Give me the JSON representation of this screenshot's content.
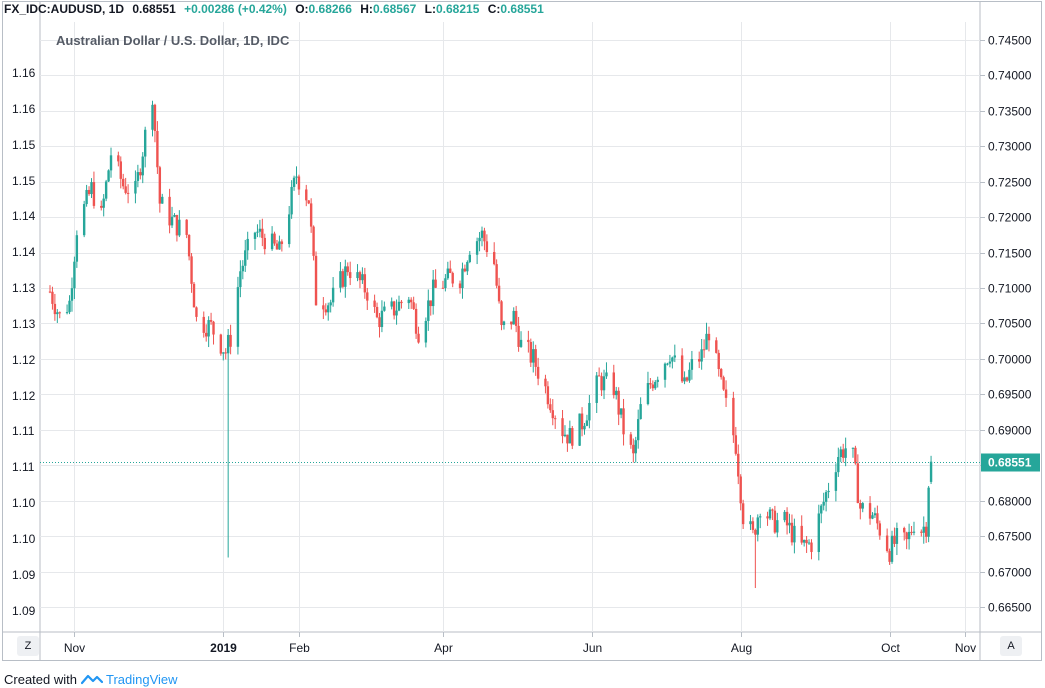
{
  "header": {
    "symbol": "FX_IDC:AUDUSD, 1D",
    "last": "0.68551",
    "change": "+0.00286 (+0.42%)",
    "o_label": "O:",
    "o": "0.68266",
    "h_label": "H:",
    "h": "0.68567",
    "l_label": "L:",
    "l": "0.68215",
    "c_label": "C:",
    "c": "0.68551"
  },
  "footer": {
    "created_with": "Created with",
    "brand": "TradingView"
  },
  "buttons": {
    "left": "Z",
    "right": "A"
  },
  "chart_data": {
    "type": "candlestick",
    "title": "Australian Dollar / U.S. Dollar, 1D, IDC",
    "colors": {
      "up": "#26a69a",
      "down": "#ef5350",
      "last_price": "#26a69a",
      "grid": "#e6e8eb"
    },
    "right_axis": {
      "ylim": [
        0.6615,
        0.7475
      ],
      "ticks": [
        "0.66500",
        "0.67000",
        "0.67500",
        "0.68000",
        "0.68500",
        "0.69000",
        "0.69500",
        "0.70000",
        "0.70500",
        "0.71000",
        "0.71500",
        "0.72000",
        "0.72500",
        "0.73000",
        "0.73500",
        "0.74000",
        "0.74500"
      ],
      "last_price_label": "0.68551",
      "last_price": 0.68551
    },
    "left_axis": {
      "ticks": [
        "1.09",
        "1.09",
        "1.10",
        "1.10",
        "1.11",
        "1.11",
        "1.12",
        "1.12",
        "1.13",
        "1.13",
        "1.14",
        "1.14",
        "1.15",
        "1.15",
        "1.16",
        "1.16"
      ]
    },
    "x_axis": {
      "ticks": [
        {
          "label": "Nov",
          "bold": false,
          "date": "2018-11-01"
        },
        {
          "label": "2019",
          "bold": true,
          "date": "2019-01-01"
        },
        {
          "label": "Feb",
          "bold": false,
          "date": "2019-02-01"
        },
        {
          "label": "Apr",
          "bold": false,
          "date": "2019-04-01"
        },
        {
          "label": "Jun",
          "bold": false,
          "date": "2019-06-01"
        },
        {
          "label": "Aug",
          "bold": false,
          "date": "2019-08-01"
        },
        {
          "label": "Oct",
          "bold": false,
          "date": "2019-10-01"
        },
        {
          "label": "Nov",
          "bold": false,
          "date": "2019-11-01"
        }
      ]
    },
    "grid": true,
    "path": [
      [
        "2018-10-22",
        0.7095
      ],
      [
        "2018-10-26",
        0.706
      ],
      [
        "2018-10-30",
        0.708
      ],
      [
        "2018-11-02",
        0.7185
      ],
      [
        "2018-11-08",
        0.724
      ],
      [
        "2018-11-12",
        0.72
      ],
      [
        "2018-11-16",
        0.729
      ],
      [
        "2018-11-21",
        0.7245
      ],
      [
        "2018-11-26",
        0.7235
      ],
      [
        "2018-12-03",
        0.7375
      ],
      [
        "2018-12-06",
        0.722
      ],
      [
        "2018-12-11",
        0.7195
      ],
      [
        "2018-12-17",
        0.7175
      ],
      [
        "2018-12-21",
        0.7055
      ],
      [
        "2018-12-27",
        0.7045
      ],
      [
        "2019-01-02",
        0.701
      ],
      [
        "2019-01-04",
        0.703
      ],
      [
        "2019-01-08",
        0.7125
      ],
      [
        "2019-01-14",
        0.718
      ],
      [
        "2019-01-18",
        0.717
      ],
      [
        "2019-01-24",
        0.715
      ],
      [
        "2019-01-31",
        0.726
      ],
      [
        "2019-02-05",
        0.7225
      ],
      [
        "2019-02-08",
        0.7085
      ],
      [
        "2019-02-14",
        0.708
      ],
      [
        "2019-02-21",
        0.713
      ],
      [
        "2019-03-01",
        0.7095
      ],
      [
        "2019-03-05",
        0.7055
      ],
      [
        "2019-03-12",
        0.707
      ],
      [
        "2019-03-18",
        0.709
      ],
      [
        "2019-03-22",
        0.704
      ],
      [
        "2019-03-28",
        0.7095
      ],
      [
        "2019-04-04",
        0.7115
      ],
      [
        "2019-04-08",
        0.7115
      ],
      [
        "2019-04-12",
        0.716
      ],
      [
        "2019-04-17",
        0.7175
      ],
      [
        "2019-04-22",
        0.7135
      ],
      [
        "2019-04-25",
        0.704
      ],
      [
        "2019-04-30",
        0.706
      ],
      [
        "2019-05-03",
        0.702
      ],
      [
        "2019-05-08",
        0.7
      ],
      [
        "2019-05-14",
        0.695
      ],
      [
        "2019-05-20",
        0.69
      ],
      [
        "2019-05-23",
        0.689
      ],
      [
        "2019-05-28",
        0.691
      ],
      [
        "2019-06-04",
        0.697
      ],
      [
        "2019-06-10",
        0.696
      ],
      [
        "2019-06-14",
        0.69
      ],
      [
        "2019-06-18",
        0.686
      ],
      [
        "2019-06-21",
        0.693
      ],
      [
        "2019-06-25",
        0.6965
      ],
      [
        "2019-07-03",
        0.701
      ],
      [
        "2019-07-09",
        0.696
      ],
      [
        "2019-07-12",
        0.699
      ],
      [
        "2019-07-16",
        0.7005
      ],
      [
        "2019-07-19",
        0.704
      ],
      [
        "2019-07-24",
        0.696
      ],
      [
        "2019-07-30",
        0.688
      ],
      [
        "2019-08-02",
        0.678
      ],
      [
        "2019-08-06",
        0.675
      ],
      [
        "2019-08-09",
        0.6795
      ],
      [
        "2019-08-14",
        0.677
      ],
      [
        "2019-08-19",
        0.677
      ],
      [
        "2019-08-23",
        0.675
      ],
      [
        "2019-08-26",
        0.6735
      ],
      [
        "2019-08-30",
        0.674
      ],
      [
        "2019-09-05",
        0.681
      ],
      [
        "2019-09-10",
        0.6865
      ],
      [
        "2019-09-13",
        0.6875
      ],
      [
        "2019-09-16",
        0.686
      ],
      [
        "2019-09-19",
        0.679
      ],
      [
        "2019-09-24",
        0.678
      ],
      [
        "2019-09-27",
        0.676
      ],
      [
        "2019-10-01",
        0.673
      ],
      [
        "2019-10-04",
        0.6745
      ],
      [
        "2019-10-08",
        0.674
      ],
      [
        "2019-10-11",
        0.677
      ],
      [
        "2019-10-14",
        0.676
      ],
      [
        "2019-10-16",
        0.6766
      ],
      [
        "2019-10-17",
        0.6827
      ],
      [
        "2019-10-18",
        0.6855
      ]
    ],
    "extreme_wicks": [
      {
        "date": "2019-01-03",
        "low": 0.672
      },
      {
        "date": "2019-08-07",
        "low": 0.6677
      }
    ]
  }
}
